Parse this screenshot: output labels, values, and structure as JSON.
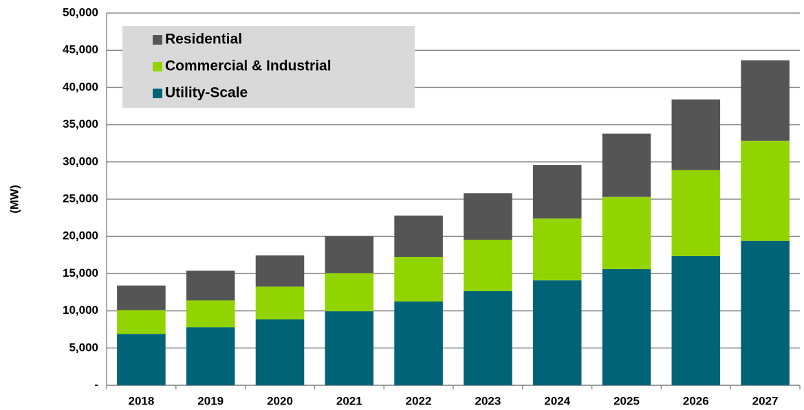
{
  "chart_data": {
    "type": "stacked_bar",
    "y_axis_label": "(MW)",
    "categories": [
      "2018",
      "2019",
      "2020",
      "2021",
      "2022",
      "2023",
      "2024",
      "2025",
      "2026",
      "2027"
    ],
    "series": [
      {
        "name": "Utility-Scale",
        "color": "#006476",
        "values": [
          6900,
          7800,
          8850,
          9950,
          11250,
          12650,
          14100,
          15600,
          17350,
          19400
        ]
      },
      {
        "name": "Commercial & Industrial",
        "color": "#92d400",
        "values": [
          3200,
          3600,
          4400,
          5100,
          6000,
          6900,
          8300,
          9700,
          11550,
          13450
        ]
      },
      {
        "name": "Residential",
        "color": "#555555",
        "values": [
          3300,
          4000,
          4200,
          5000,
          5550,
          6250,
          7200,
          8500,
          9500,
          10800
        ]
      }
    ],
    "ylim": [
      0,
      50000
    ],
    "yticks": [
      {
        "value": 0,
        "label": "-"
      },
      {
        "value": 5000,
        "label": "5,000"
      },
      {
        "value": 10000,
        "label": "10,000"
      },
      {
        "value": 15000,
        "label": "15,000"
      },
      {
        "value": 20000,
        "label": "20,000"
      },
      {
        "value": 25000,
        "label": "25,000"
      },
      {
        "value": 30000,
        "label": "30,000"
      },
      {
        "value": 35000,
        "label": "35,000"
      },
      {
        "value": 40000,
        "label": "40,000"
      },
      {
        "value": 45000,
        "label": "45,000"
      },
      {
        "value": 50000,
        "label": "50,000"
      }
    ],
    "grid": true,
    "legend": "upper left"
  }
}
